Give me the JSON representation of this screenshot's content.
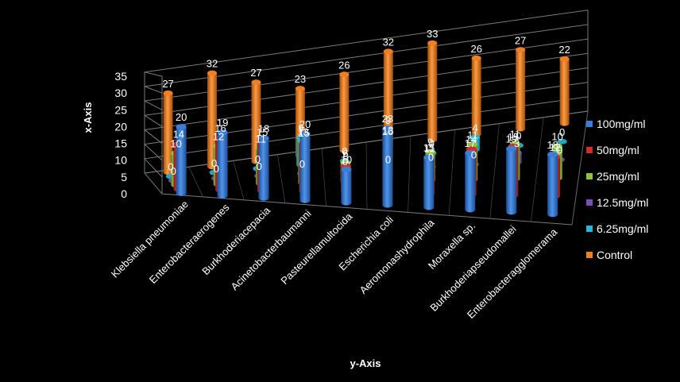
{
  "chart_data": {
    "type": "bar",
    "subtype": "3d-clustered-column",
    "xlabel": "y-Axis",
    "ylabel": "x-Axis",
    "ylim": [
      0,
      35
    ],
    "yticks": [
      0,
      5,
      10,
      15,
      20,
      25,
      30,
      35
    ],
    "grid": true,
    "legend_position": "right",
    "categories": [
      "Klebsiella pneumoniae",
      "Enterobacteraerogenes",
      "Burkhoderiacepacia",
      "Acinetobacterbaumanni",
      "Pasteurellamultocida",
      "Escherichia coli",
      "Aeromonashydrophila",
      "Moraxella sp.",
      "Burkhoderiapseudomallei",
      "Enterobacteragglomerama"
    ],
    "series": [
      {
        "name": "100mg/ml",
        "color": "#3a7fd5",
        "values": [
          20,
          19,
          18,
          20,
          10,
          23,
          15,
          17,
          19,
          18
        ]
      },
      {
        "name": "50mg/ml",
        "color": "#d42b2b",
        "values": [
          14,
          16,
          15,
          15,
          8,
          16,
          11,
          14,
          15,
          12
        ]
      },
      {
        "name": "25mg/ml",
        "color": "#8bc53f",
        "values": [
          10,
          12,
          11,
          13,
          6,
          13,
          9,
          11,
          11,
          10
        ]
      },
      {
        "name": "12.5mg/ml",
        "color": "#7a4fb0",
        "values": [
          0,
          0,
          0,
          0,
          0,
          0,
          0,
          0,
          3,
          0
        ]
      },
      {
        "name": "6.25mg/ml",
        "color": "#27b6d6",
        "values": [
          0,
          0,
          0,
          9,
          0,
          9,
          0,
          4,
          0,
          0
        ]
      },
      {
        "name": "Control",
        "color": "#f07f1f",
        "values": [
          27,
          32,
          27,
          23,
          26,
          32,
          33,
          26,
          27,
          22
        ]
      }
    ]
  }
}
